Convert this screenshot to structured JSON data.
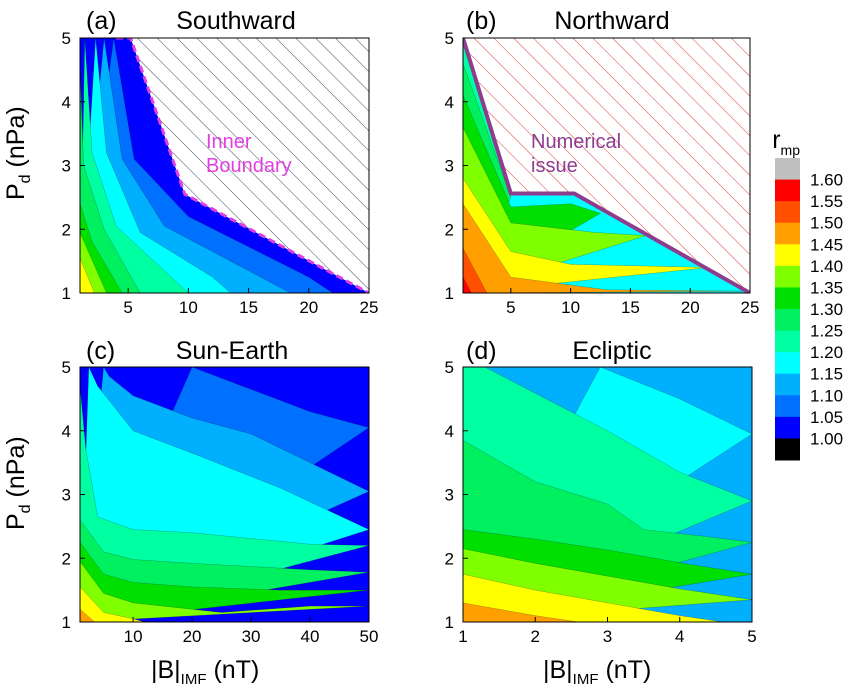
{
  "chart_data": [
    {
      "type": "heatmap",
      "label": "(a)",
      "title": "Southward",
      "xlabel": "",
      "ylabel": "P_d (nPa)",
      "xlim": [
        1,
        25
      ],
      "ylim": [
        1,
        5
      ],
      "xticks": [
        5,
        10,
        15,
        20,
        25
      ],
      "yticks": [
        1,
        2,
        3,
        4,
        5
      ],
      "contour_boundaries": [
        {
          "level": 1.4,
          "points": [
            [
              1.0,
              1.55
            ],
            [
              2.2,
              1.0
            ]
          ]
        },
        {
          "level": 1.35,
          "points": [
            [
              1.0,
              1.95
            ],
            [
              3.2,
              1.0
            ]
          ]
        },
        {
          "level": 1.3,
          "points": [
            [
              1.0,
              2.4
            ],
            [
              2.0,
              1.8
            ],
            [
              4.5,
              1.0
            ]
          ]
        },
        {
          "level": 1.25,
          "points": [
            [
              1.0,
              4.6
            ],
            [
              1.3,
              3.0
            ],
            [
              3.0,
              2.0
            ],
            [
              6.0,
              1.0
            ]
          ]
        },
        {
          "level": 1.2,
          "points": [
            [
              1.4,
              5.0
            ],
            [
              2.0,
              3.2
            ],
            [
              4.0,
              2.05
            ],
            [
              8.0,
              1.35
            ],
            [
              10.0,
              1.0
            ]
          ]
        },
        {
          "level": 1.15,
          "points": [
            [
              2.3,
              5.0
            ],
            [
              3.2,
              3.2
            ],
            [
              6.0,
              1.95
            ],
            [
              12.0,
              1.25
            ],
            [
              13.5,
              1.0
            ]
          ]
        },
        {
          "level": 1.1,
          "points": [
            [
              3.0,
              5.0
            ],
            [
              4.5,
              3.1
            ],
            [
              8.0,
              2.05
            ],
            [
              16.0,
              1.25
            ],
            [
              18.5,
              1.0
            ]
          ]
        },
        {
          "level": 1.05,
          "points": [
            [
              3.8,
              5.0
            ],
            [
              5.5,
              3.1
            ],
            [
              10.0,
              2.2
            ],
            [
              20.0,
              1.25
            ],
            [
              22.0,
              1.0
            ]
          ]
        }
      ],
      "annotation": "Inner Boundary",
      "boundary_line": [
        [
          4.0,
          5.0
        ],
        [
          5.2,
          5.0
        ],
        [
          9.7,
          2.55
        ],
        [
          25.0,
          1.0
        ]
      ],
      "boundary_style": "dashed",
      "boundary_color": "#e040e0"
    },
    {
      "type": "heatmap",
      "label": "(b)",
      "title": "Northward",
      "xlabel": "",
      "ylabel": "",
      "xlim": [
        1,
        25
      ],
      "ylim": [
        1,
        5
      ],
      "xticks": [
        5,
        10,
        15,
        20,
        25
      ],
      "yticks": [
        1,
        2,
        3,
        4,
        5
      ],
      "contour_boundaries": [
        {
          "level": 1.55,
          "points": [
            [
              1.0,
              1.25
            ],
            [
              1.7,
              1.0
            ]
          ]
        },
        {
          "level": 1.5,
          "points": [
            [
              1.0,
              1.7
            ],
            [
              3.0,
              1.0
            ]
          ]
        },
        {
          "level": 1.45,
          "points": [
            [
              1.0,
              2.4
            ],
            [
              5.0,
              1.25
            ],
            [
              13.0,
              1.05
            ],
            [
              25.0,
              1.03
            ]
          ]
        },
        {
          "level": 1.4,
          "points": [
            [
              1.0,
              2.8
            ],
            [
              5.0,
              1.65
            ],
            [
              10.0,
              1.45
            ],
            [
              21.5,
              1.4
            ]
          ]
        },
        {
          "level": 1.35,
          "points": [
            [
              1.0,
              3.6
            ],
            [
              5.0,
              2.1
            ],
            [
              12.0,
              1.95
            ],
            [
              16.3,
              1.9
            ]
          ]
        },
        {
          "level": 1.3,
          "points": [
            [
              1.0,
              4.1
            ],
            [
              5.0,
              2.35
            ],
            [
              10.0,
              2.4
            ],
            [
              12.5,
              2.25
            ]
          ]
        },
        {
          "level": 1.25,
          "points": [
            [
              1.0,
              4.6
            ],
            [
              5.0,
              2.5
            ]
          ]
        },
        {
          "level": 1.2,
          "points": [
            [
              1.0,
              4.95
            ],
            [
              5.0,
              2.56
            ]
          ]
        }
      ],
      "annotation": "Numerical issue",
      "boundary_line": [
        [
          1.0,
          5.0
        ],
        [
          5.0,
          2.56
        ],
        [
          10.3,
          2.56
        ],
        [
          25.0,
          1.0
        ]
      ],
      "boundary_style": "solid",
      "boundary_color": "#8e3c8e"
    },
    {
      "type": "heatmap",
      "label": "(c)",
      "title": "Sun-Earth",
      "xlabel": "|B|IMF (nT)",
      "ylabel": "P_d (nPa)",
      "xlim": [
        1,
        50
      ],
      "ylim": [
        1,
        5
      ],
      "xticks": [
        10,
        20,
        30,
        40,
        50
      ],
      "yticks": [
        1,
        2,
        3,
        4,
        5
      ],
      "contour_boundaries": [
        {
          "level": 1.45,
          "points": [
            [
              1.0,
              1.2
            ],
            [
              3.5,
              1.0
            ]
          ]
        },
        {
          "level": 1.4,
          "points": [
            [
              1.0,
              1.55
            ],
            [
              5.0,
              1.15
            ],
            [
              10.0,
              1.05
            ],
            [
              12.0,
              1.0
            ]
          ]
        },
        {
          "level": 1.35,
          "points": [
            [
              1.0,
              1.95
            ],
            [
              5.0,
              1.45
            ],
            [
              10.0,
              1.3
            ],
            [
              20.0,
              1.2
            ],
            [
              25.0,
              1.15
            ],
            [
              40.0,
              1.25
            ],
            [
              50.0,
              1.25
            ]
          ]
        },
        {
          "level": 1.3,
          "points": [
            [
              1.0,
              2.25
            ],
            [
              5.0,
              1.75
            ],
            [
              10.0,
              1.62
            ],
            [
              20.0,
              1.55
            ],
            [
              35.0,
              1.5
            ],
            [
              50.0,
              1.5
            ]
          ]
        },
        {
          "level": 1.25,
          "points": [
            [
              1.0,
              2.6
            ],
            [
              3.0,
              2.35
            ],
            [
              5.0,
              2.1
            ],
            [
              10.0,
              1.98
            ],
            [
              20.0,
              1.92
            ],
            [
              40.0,
              1.82
            ],
            [
              50.0,
              1.78
            ]
          ]
        },
        {
          "level": 1.2,
          "points": [
            [
              1.0,
              4.7
            ],
            [
              2.0,
              3.7
            ],
            [
              4.0,
              2.65
            ],
            [
              10.0,
              2.45
            ],
            [
              20.0,
              2.4
            ],
            [
              40.0,
              2.22
            ],
            [
              50.0,
              2.2
            ]
          ]
        },
        {
          "level": 1.15,
          "points": [
            [
              2.5,
              5.0
            ],
            [
              4.0,
              4.7
            ],
            [
              10.0,
              4.0
            ],
            [
              20.0,
              3.65
            ],
            [
              35.0,
              3.1
            ],
            [
              50.0,
              2.45
            ]
          ]
        },
        {
          "level": 1.1,
          "points": [
            [
              5.0,
              5.0
            ],
            [
              6.0,
              4.85
            ],
            [
              10.0,
              4.55
            ],
            [
              20.0,
              4.2
            ],
            [
              30.0,
              3.95
            ],
            [
              50.0,
              3.05
            ]
          ]
        },
        {
          "level": 1.05,
          "points": [
            [
              20.0,
              5.0
            ],
            [
              30.0,
              4.65
            ],
            [
              40.0,
              4.3
            ],
            [
              50.0,
              4.05
            ]
          ]
        }
      ]
    },
    {
      "type": "heatmap",
      "label": "(d)",
      "title": "Ecliptic",
      "xlabel": "|B|IMF (nT)",
      "ylabel": "",
      "xlim": [
        1,
        5
      ],
      "ylim": [
        1,
        5
      ],
      "xticks": [
        1,
        2,
        3,
        4,
        5
      ],
      "yticks": [
        1,
        2,
        3,
        4,
        5
      ],
      "contour_boundaries": [
        {
          "level": 1.45,
          "points": [
            [
              1.0,
              1.3
            ],
            [
              2.0,
              1.1
            ],
            [
              2.6,
              1.0
            ]
          ]
        },
        {
          "level": 1.4,
          "points": [
            [
              1.0,
              1.75
            ],
            [
              2.0,
              1.5
            ],
            [
              3.0,
              1.3
            ],
            [
              4.0,
              1.1
            ],
            [
              4.6,
              1.0
            ]
          ]
        },
        {
          "level": 1.35,
          "points": [
            [
              1.0,
              2.15
            ],
            [
              2.0,
              1.92
            ],
            [
              3.0,
              1.72
            ],
            [
              4.0,
              1.52
            ],
            [
              5.0,
              1.35
            ]
          ]
        },
        {
          "level": 1.3,
          "points": [
            [
              1.0,
              2.45
            ],
            [
              2.0,
              2.3
            ],
            [
              3.0,
              2.13
            ],
            [
              4.0,
              1.93
            ],
            [
              5.0,
              1.75
            ]
          ]
        },
        {
          "level": 1.25,
          "points": [
            [
              1.0,
              3.85
            ],
            [
              2.0,
              3.2
            ],
            [
              3.0,
              2.85
            ],
            [
              3.5,
              2.45
            ],
            [
              4.3,
              2.35
            ],
            [
              5.0,
              2.25
            ]
          ]
        },
        {
          "level": 1.2,
          "points": [
            [
              1.0,
              5.0
            ],
            [
              1.3,
              5.0
            ],
            [
              3.0,
              4.0
            ],
            [
              4.0,
              3.35
            ],
            [
              5.0,
              2.9
            ]
          ]
        },
        {
          "level": 1.15,
          "points": [
            [
              2.9,
              5.0
            ],
            [
              4.0,
              4.5
            ],
            [
              5.0,
              3.95
            ]
          ]
        }
      ]
    }
  ],
  "colorbar": {
    "title": "r",
    "title_sub": "mp",
    "labels": [
      "1.60",
      "1.55",
      "1.50",
      "1.45",
      "1.40",
      "1.35",
      "1.30",
      "1.25",
      "1.20",
      "1.15",
      "1.10",
      "1.05",
      "1.00"
    ],
    "colors": [
      "#c0c0c0",
      "#ff0000",
      "#ff5000",
      "#ffa000",
      "#ffff00",
      "#80ff00",
      "#00e000",
      "#00f060",
      "#00ffa0",
      "#00ffff",
      "#00b0ff",
      "#0070ff",
      "#0000ff",
      "#000000"
    ]
  },
  "level_colors": [
    {
      "level": 1.0,
      "color": "#0000ff"
    },
    {
      "level": 1.05,
      "color": "#0070ff"
    },
    {
      "level": 1.1,
      "color": "#00b0ff"
    },
    {
      "level": 1.15,
      "color": "#00ffff"
    },
    {
      "level": 1.2,
      "color": "#00ffa0"
    },
    {
      "level": 1.25,
      "color": "#00f060"
    },
    {
      "level": 1.3,
      "color": "#00e000"
    },
    {
      "level": 1.35,
      "color": "#80ff00"
    },
    {
      "level": 1.4,
      "color": "#ffff00"
    },
    {
      "level": 1.45,
      "color": "#ffa000"
    },
    {
      "level": 1.5,
      "color": "#ff5000"
    },
    {
      "level": 1.55,
      "color": "#ff0000"
    }
  ]
}
